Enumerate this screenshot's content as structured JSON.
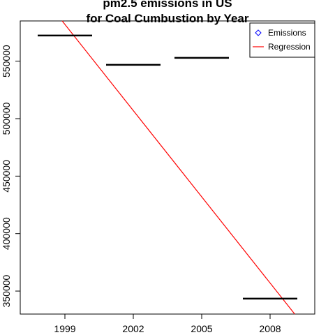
{
  "chart_data": {
    "type": "bar",
    "title_lines": [
      "pm2.5 emissions in US",
      "for Coal Cumbustion by Year"
    ],
    "xlabel": "",
    "ylabel": "",
    "categories": [
      "1999",
      "2002",
      "2005",
      "2008"
    ],
    "series": [
      {
        "name": "Emissions",
        "values": [
          572346,
          546789,
          552881,
          343432
        ],
        "color": "#000000"
      }
    ],
    "regression": {
      "name": "Regression",
      "color": "#ff0000",
      "start": {
        "x": "1999",
        "y": 582000
      },
      "end": {
        "x": "2008",
        "y": 357000
      }
    },
    "yticks": [
      350000,
      400000,
      450000,
      500000,
      550000
    ],
    "ylim": [
      330000,
      585000
    ],
    "grid": false,
    "legend": {
      "position": "top-right",
      "entries": [
        "Emissions",
        "Regression"
      ],
      "emissions_marker": "open-diamond",
      "emissions_marker_color": "#0000ff"
    }
  }
}
